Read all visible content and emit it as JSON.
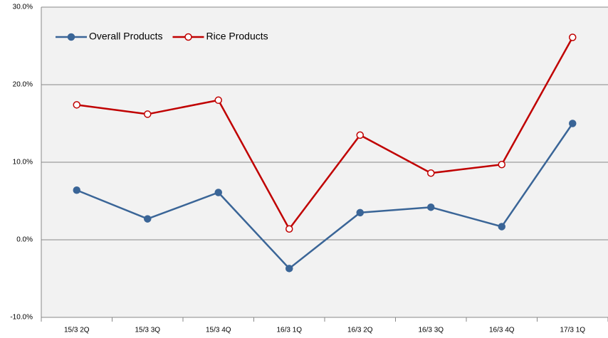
{
  "chart_data": {
    "type": "line",
    "categories": [
      "15/3 2Q",
      "15/3 3Q",
      "15/3 4Q",
      "16/3 1Q",
      "16/3 2Q",
      "16/3 3Q",
      "16/3 4Q",
      "17/3 1Q"
    ],
    "series": [
      {
        "name": "Overall Products",
        "color": "#3a6597",
        "values": [
          6.4,
          2.7,
          6.1,
          -3.7,
          3.5,
          4.2,
          1.7,
          15.0
        ]
      },
      {
        "name": "Rice Products",
        "color": "#c00000",
        "values": [
          17.4,
          16.2,
          18.0,
          1.4,
          13.5,
          8.6,
          9.7,
          26.1
        ]
      }
    ],
    "ylim": [
      -10,
      30
    ],
    "yticks": [
      {
        "value": -10,
        "label": "-10.0%"
      },
      {
        "value": 0,
        "label": "0.0%"
      },
      {
        "value": 10,
        "label": "10.0%"
      },
      {
        "value": 20,
        "label": "20.0%"
      },
      {
        "value": 30,
        "label": "30.0%"
      }
    ],
    "grid": true,
    "legend": "upper left"
  }
}
